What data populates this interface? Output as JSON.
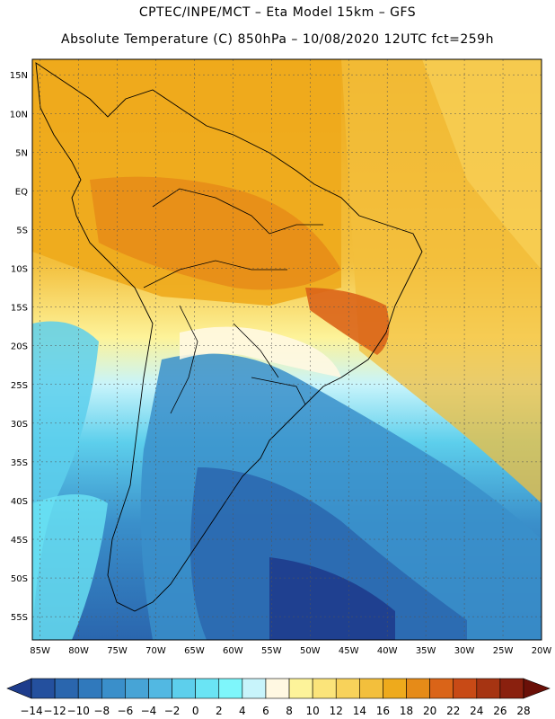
{
  "header": {
    "line1": "CPTEC/INPE/MCT –  Eta Model 15km – GFS",
    "line2": "Absolute Temperature (C) 850hPa – 10/08/2020 12UTC fct=259h"
  },
  "map": {
    "lat_labels": [
      "15N",
      "10N",
      "5N",
      "EQ",
      "5S",
      "10S",
      "15S",
      "20S",
      "25S",
      "30S",
      "35S",
      "40S",
      "45S",
      "50S",
      "55S"
    ],
    "lon_labels": [
      "85W",
      "80W",
      "75W",
      "70W",
      "65W",
      "60W",
      "55W",
      "50W",
      "45W",
      "40W",
      "35W",
      "30W",
      "25W",
      "20W"
    ],
    "lat_range": [
      -58,
      17
    ],
    "lon_range": [
      -86,
      -20
    ]
  },
  "colorbar": {
    "labels": [
      "-14",
      "-12",
      "-10",
      "-8",
      "-6",
      "-4",
      "-2",
      "0",
      "2",
      "4",
      "6",
      "8",
      "10",
      "12",
      "14",
      "16",
      "18",
      "20",
      "22",
      "24",
      "26",
      "28"
    ],
    "colors": [
      "#1e3c8c",
      "#24509e",
      "#2a66ae",
      "#3079bc",
      "#3a8fca",
      "#47a4d6",
      "#52b8e2",
      "#5dcfec",
      "#6ae4f4",
      "#7ef6fb",
      "#c8f4fb",
      "#fff8e2",
      "#fdf39a",
      "#fbe47a",
      "#f8d25a",
      "#f3bf3c",
      "#eeaa1c",
      "#e68b18",
      "#da6418",
      "#c84a16",
      "#a63412",
      "#8a200e",
      "#6a1008"
    ]
  }
}
